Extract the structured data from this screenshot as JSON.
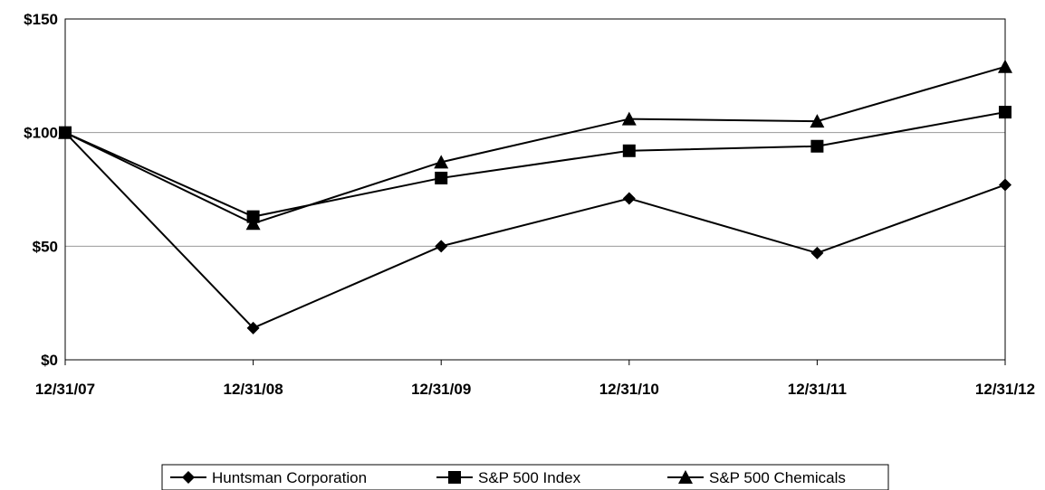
{
  "chart_data": {
    "type": "line",
    "categories": [
      "12/31/07",
      "12/31/08",
      "12/31/09",
      "12/31/10",
      "12/31/11",
      "12/31/12"
    ],
    "y_ticks": [
      "$0",
      "$50",
      "$100",
      "$150"
    ],
    "ylim": [
      0,
      150
    ],
    "grid": true,
    "legend_position": "bottom",
    "series": [
      {
        "name": "Huntsman Corporation",
        "marker": "diamond",
        "values": [
          100,
          14,
          50,
          71,
          47,
          77
        ]
      },
      {
        "name": "S&P 500 Index",
        "marker": "square",
        "values": [
          100,
          63,
          80,
          92,
          94,
          109
        ]
      },
      {
        "name": "S&P 500 Chemicals",
        "marker": "triangle",
        "values": [
          100,
          60,
          87,
          106,
          105,
          129
        ]
      }
    ],
    "colors": {
      "line": "#000000",
      "grid": "#999999",
      "frame": "#000000"
    }
  }
}
